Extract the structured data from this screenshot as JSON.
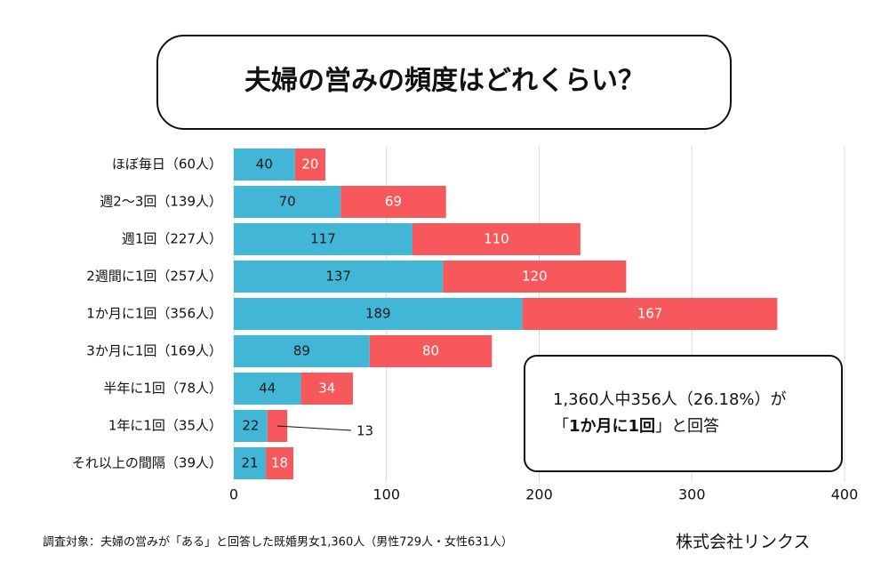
{
  "chart_data": {
    "type": "stacked-bar-horizontal",
    "title": "夫婦の営みの頻度はどれくらい？",
    "categories": [
      "ほぼ毎日（60人）",
      "週2～3回（139人）",
      "週1回（227人）",
      "2週間に1回（257人）",
      "1か月に1回（356人）",
      "3か月に1回（169人）",
      "半年に1回（78人）",
      "1年に1回（35人）",
      "それ以上の間隔（39人）"
    ],
    "series": [
      {
        "color": "#42b6d6",
        "label_color": "#1a1a1a",
        "values": [
          40,
          70,
          117,
          137,
          189,
          89,
          44,
          22,
          21
        ]
      },
      {
        "color": "#f6585c",
        "label_color": "#ffffff",
        "values": [
          20,
          69,
          110,
          120,
          167,
          80,
          34,
          13,
          18
        ]
      }
    ],
    "xlim": [
      0,
      400
    ],
    "xticks": [
      0,
      100,
      200,
      300,
      400
    ],
    "grid": true,
    "annotation": {
      "line1": "1,360人中356人（26.18%）が",
      "line2_prefix": "「",
      "line2_bold": "1か月に1回",
      "line2_suffix": "」と回答"
    },
    "footnote": "調査対象：夫婦の営みが「ある」と回答した既婚男女1,360人（男性729人・女性631人）",
    "source": "株式会社リンクス"
  }
}
